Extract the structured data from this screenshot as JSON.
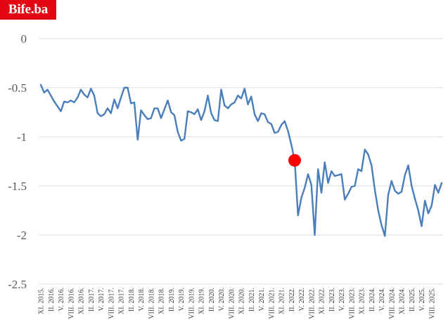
{
  "logo": {
    "text": "Bife.ba",
    "bg": "#e30613",
    "fg": "#ffffff"
  },
  "chart_data": {
    "type": "line",
    "title": "",
    "xlabel": "",
    "ylabel": "",
    "ylim": [
      -2.5,
      0
    ],
    "yticks": [
      0,
      -0.5,
      -1,
      -1.5,
      -2,
      -2.5
    ],
    "ytick_labels": [
      "0",
      "-0.5",
      "-1",
      "-1.5",
      "-2",
      "-2.5"
    ],
    "grid": "horizontal",
    "line_color": "#4a7ebb",
    "marker_color": "#ff0000",
    "x_tick_labels": [
      "XI. 2015.",
      "II. 2016.",
      "V. 2016.",
      "VIII. 2016.",
      "XI. 2016.",
      "II. 2017.",
      "V. 2017.",
      "VIII. 2017.",
      "XI. 2017.",
      "II. 2018.",
      "V. 2018.",
      "VIII. 2018.",
      "XI. 2018.",
      "II. 2019.",
      "V. 2019.",
      "VIII. 2019.",
      "XI. 2019.",
      "II. 2020.",
      "V. 2020.",
      "VIII. 2020.",
      "XI. 2020.",
      "II. 2021.",
      "V. 2021.",
      "VIII. 2021.",
      "XI. 2021.",
      "II. 2022.",
      "V. 2022.",
      "VIII. 2022.",
      "XI. 2022.",
      "II. 2023.",
      "V. 2023.",
      "VIII. 2023.",
      "XI. 2023.",
      "II. 2024.",
      "V. 2024.",
      "VIII. 2024.",
      "XI. 2024.",
      "II. 2025.",
      "V. 2025.",
      "VIII. 2025."
    ],
    "series": [
      {
        "values": [
          -0.47,
          -0.55,
          -0.52,
          -0.58,
          -0.64,
          -0.69,
          -0.74,
          -0.64,
          -0.65,
          -0.63,
          -0.65,
          -0.6,
          -0.52,
          -0.57,
          -0.6,
          -0.51,
          -0.58,
          -0.76,
          -0.79,
          -0.77,
          -0.71,
          -0.76,
          -0.62,
          -0.71,
          -0.6,
          -0.5,
          -0.5,
          -0.66,
          -0.65,
          -1.03,
          -0.73,
          -0.78,
          -0.82,
          -0.81,
          -0.71,
          -0.71,
          -0.81,
          -0.72,
          -0.63,
          -0.75,
          -0.78,
          -0.95,
          -1.04,
          -1.02,
          -0.74,
          -0.75,
          -0.77,
          -0.72,
          -0.83,
          -0.74,
          -0.58,
          -0.76,
          -0.83,
          -0.84,
          -0.52,
          -0.68,
          -0.71,
          -0.67,
          -0.65,
          -0.58,
          -0.61,
          -0.51,
          -0.67,
          -0.59,
          -0.77,
          -0.84,
          -0.76,
          -0.77,
          -0.85,
          -0.87,
          -0.96,
          -0.95,
          -0.88,
          -0.84,
          -0.94,
          -1.08,
          -1.24,
          -1.8,
          -1.62,
          -1.52,
          -1.38,
          -1.49,
          -2.0,
          -1.33,
          -1.57,
          -1.26,
          -1.47,
          -1.35,
          -1.4,
          -1.39,
          -1.38,
          -1.64,
          -1.58,
          -1.51,
          -1.5,
          -1.33,
          -1.35,
          -1.13,
          -1.18,
          -1.29,
          -1.54,
          -1.75,
          -1.9,
          -2.01,
          -1.59,
          -1.45,
          -1.55,
          -1.58,
          -1.56,
          -1.39,
          -1.29,
          -1.5,
          -1.63,
          -1.75,
          -1.91,
          -1.65,
          -1.78,
          -1.7,
          -1.49,
          -1.57,
          -1.47
        ],
        "highlight_index": 76
      }
    ]
  }
}
